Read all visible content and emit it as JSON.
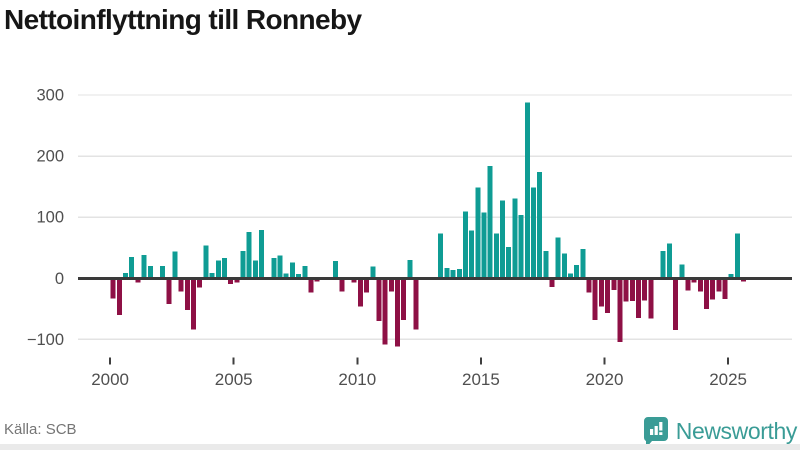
{
  "header": {
    "title": "Nettoinflyttning till Ronneby"
  },
  "footer": {
    "source": "Källa: SCB",
    "brand": "Newsworthy"
  },
  "colors": {
    "positive_bar": "#0f9c94",
    "negative_bar": "#8e1045",
    "gridline": "#e3e3e3",
    "zero_line": "#3a3a3a",
    "tick_mark": "#3f3f3f",
    "tick_label": "#4f4f4f",
    "title": "#161616",
    "source_text": "#757575",
    "brand_teal": "#3a9c96",
    "footer_strip": "#eaeaea",
    "background": "#ffffff"
  },
  "chart_data": {
    "type": "bar",
    "title": "Nettoinflyttning till Ronneby",
    "frequency": "quarterly",
    "start_period": "2000-Q1",
    "end_period": "2025-Q3",
    "values": [
      -33,
      -60,
      9,
      35,
      -7,
      38,
      20,
      0,
      20,
      -42,
      44,
      -22,
      -52,
      -84,
      -15,
      54,
      9,
      29,
      33,
      -9,
      -7,
      45,
      76,
      29,
      79,
      0,
      33,
      37,
      8,
      26,
      7,
      20,
      -23,
      -5,
      -3,
      0,
      28,
      -22,
      0,
      -7,
      -46,
      -23,
      19,
      -70,
      -108,
      -22,
      -112,
      -68,
      30,
      -84,
      0,
      0,
      0,
      73,
      17,
      14,
      15,
      109,
      78,
      149,
      108,
      184,
      73,
      127,
      51,
      131,
      104,
      288,
      149,
      174,
      45,
      -14,
      67,
      41,
      8,
      22,
      48,
      -23,
      -68,
      -46,
      -57,
      -19,
      -104,
      -38,
      -37,
      -65,
      -36,
      -66,
      0,
      45,
      57,
      -85,
      23,
      -20,
      -7,
      -22,
      -50,
      -35,
      -22,
      -34,
      7,
      73,
      -5
    ],
    "y_ticks": [
      {
        "value": 300,
        "label": "300"
      },
      {
        "value": 200,
        "label": "200"
      },
      {
        "value": 100,
        "label": "100"
      },
      {
        "value": 0,
        "label": "0"
      },
      {
        "value": -100,
        "label": "−100"
      }
    ],
    "x_ticks": [
      {
        "year": 2000,
        "label": "2000"
      },
      {
        "year": 2005,
        "label": "2005"
      },
      {
        "year": 2010,
        "label": "2010"
      },
      {
        "year": 2015,
        "label": "2015"
      },
      {
        "year": 2020,
        "label": "2020"
      },
      {
        "year": 2025,
        "label": "2025"
      }
    ],
    "ylim": [
      -127,
      325
    ],
    "grid": true,
    "legend": false
  }
}
